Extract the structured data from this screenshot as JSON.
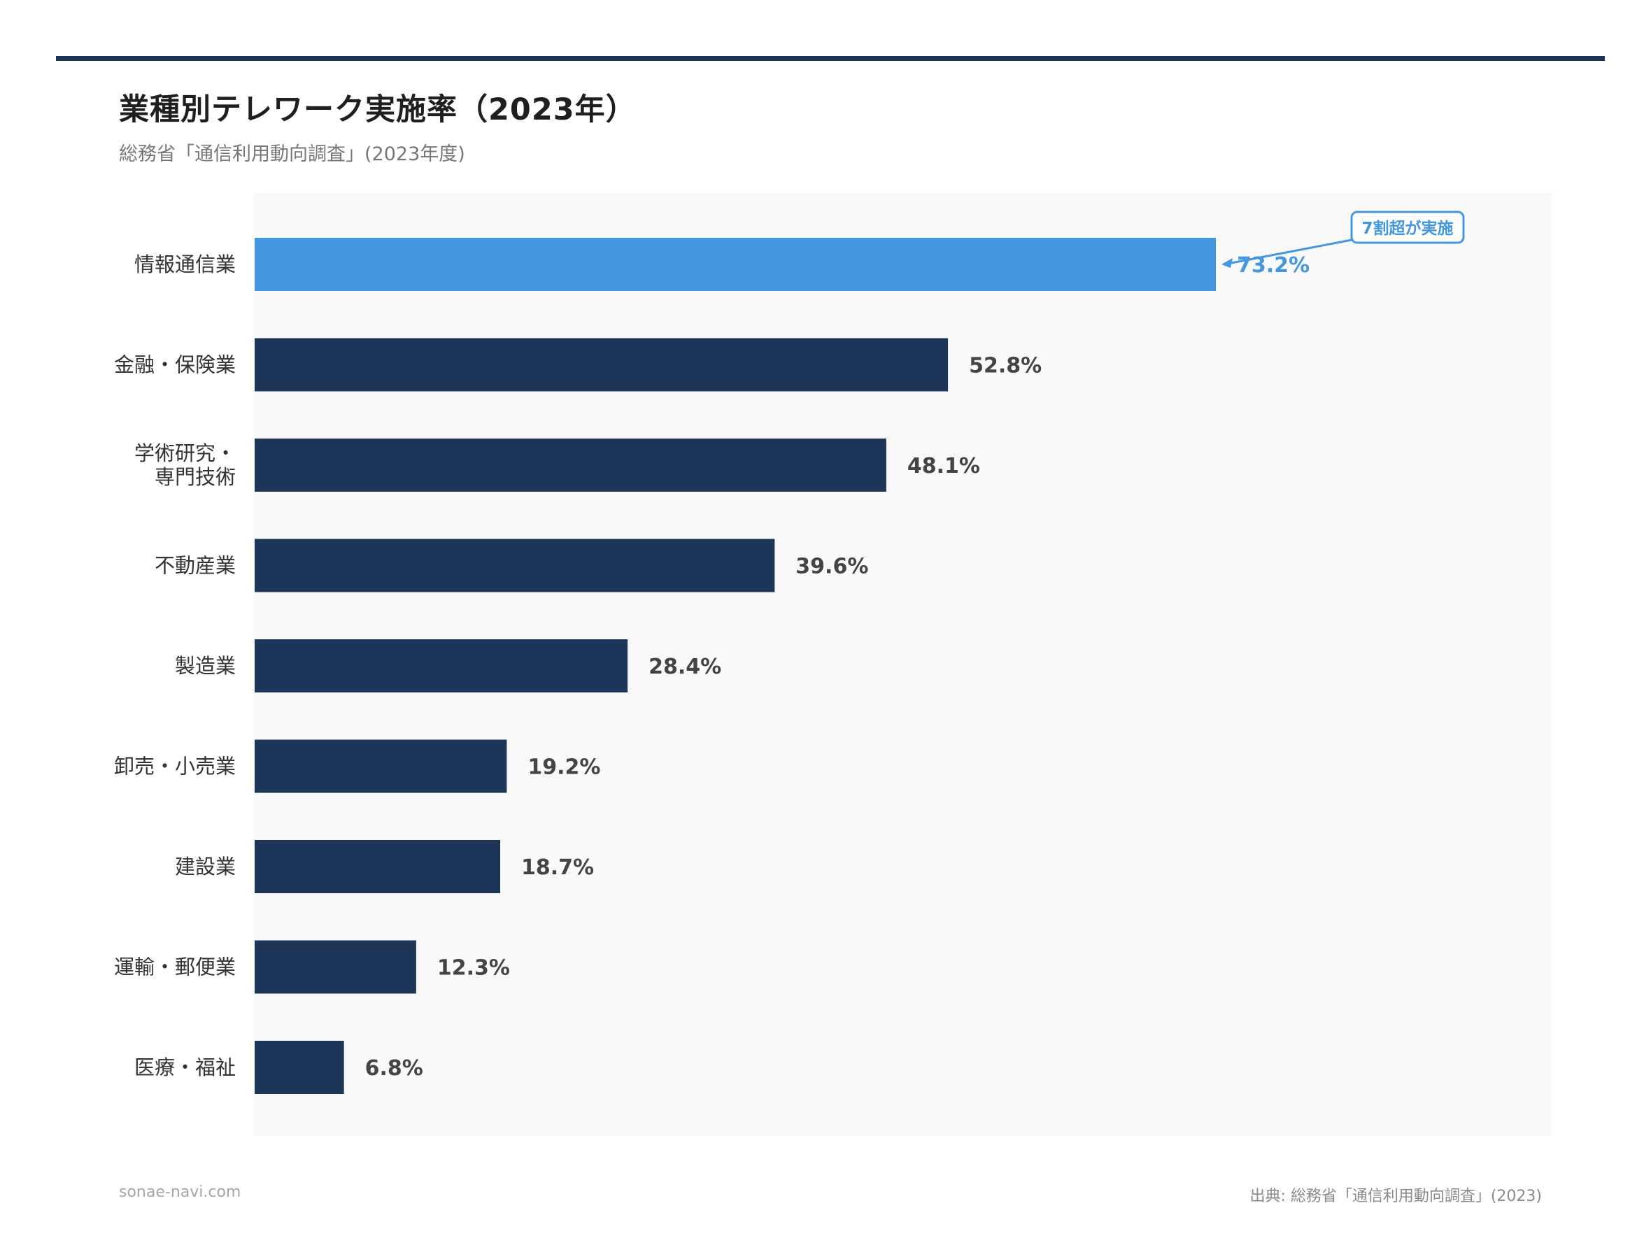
{
  "header": {
    "title": "業種別テレワーク実施率（2023年）",
    "subtitle": "総務省「通信利用動向調査」(2023年度)"
  },
  "footer": {
    "site": "sonae-navi.com",
    "source": "出典: 総務省「通信利用動向調査」(2023)"
  },
  "colors": {
    "primary_bar": "#1c3559",
    "highlight_bar": "#4497de",
    "plot_background": "#f9f9f9",
    "value_label": "#444444",
    "category_label": "#333333"
  },
  "chart_data": {
    "type": "bar",
    "orientation": "horizontal",
    "title": "業種別テレワーク実施率（2023年）",
    "subtitle": "総務省「通信利用動向調査」(2023年度)",
    "xlabel": "",
    "ylabel": "",
    "xlim": [
      0,
      100
    ],
    "grid": false,
    "categories": [
      "情報通信業",
      "金融・保険業",
      "学術研究・\n専門技術",
      "不動産業",
      "製造業",
      "卸売・小売業",
      "建設業",
      "運輸・郵便業",
      "医療・福祉"
    ],
    "values": [
      73.2,
      52.8,
      48.1,
      39.6,
      28.4,
      19.2,
      18.7,
      12.3,
      6.8
    ],
    "value_labels": [
      "73.2%",
      "52.8%",
      "48.1%",
      "39.6%",
      "28.4%",
      "19.2%",
      "18.7%",
      "12.3%",
      "6.8%"
    ],
    "highlight_index": 0,
    "annotation": {
      "text": "7割超が実施",
      "target_index": 0
    }
  }
}
